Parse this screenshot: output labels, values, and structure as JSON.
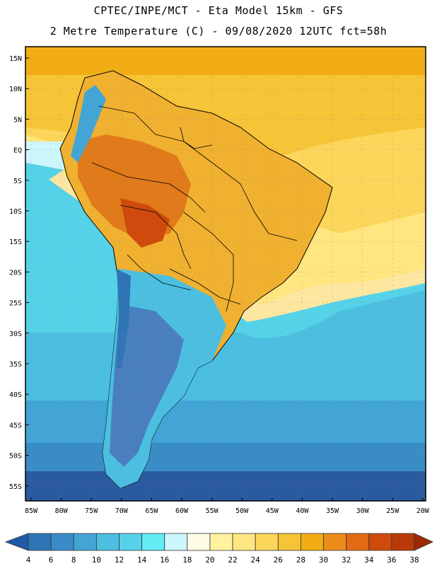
{
  "header": {
    "line1": "CPTEC/INPE/MCT -  Eta Model 15km - GFS",
    "line2": "2 Metre Temperature (C) - 09/08/2020 12UTC fct=58h"
  },
  "map": {
    "region": "South America",
    "lat_labels": [
      "15N",
      "10N",
      "5N",
      "EQ",
      "5S",
      "10S",
      "15S",
      "20S",
      "25S",
      "30S",
      "35S",
      "40S",
      "45S",
      "50S",
      "55S"
    ],
    "lon_labels": [
      "85W",
      "80W",
      "75W",
      "70W",
      "65W",
      "60W",
      "55W",
      "50W",
      "45W",
      "40W",
      "35W",
      "30W",
      "25W",
      "20W"
    ],
    "colors": {
      "ocean_south": "#2a5aa0",
      "ocean_mid": "#3fb0d8",
      "ocean_warm": "#fde6a0",
      "land_hot": "#e07a1a",
      "land_warm": "#f0b030",
      "andes_cold": "#4a7fbf",
      "gridline": "#888888"
    }
  },
  "colorbar": {
    "ticks": [
      "4",
      "6",
      "8",
      "10",
      "12",
      "14",
      "16",
      "18",
      "20",
      "22",
      "24",
      "26",
      "28",
      "30",
      "32",
      "34",
      "36",
      "38"
    ],
    "colors": [
      "#1f5aa6",
      "#2f75b6",
      "#3a8cc7",
      "#42a5d6",
      "#4cbfe0",
      "#55d2e8",
      "#63ecf3",
      "#cdf5fc",
      "#fffbe6",
      "#fff3a0",
      "#ffe680",
      "#fbd65a",
      "#f5c437",
      "#f2ad14",
      "#ec8c1c",
      "#e26a14",
      "#cf4a0c",
      "#b93a08",
      "#9e2a04"
    ]
  }
}
